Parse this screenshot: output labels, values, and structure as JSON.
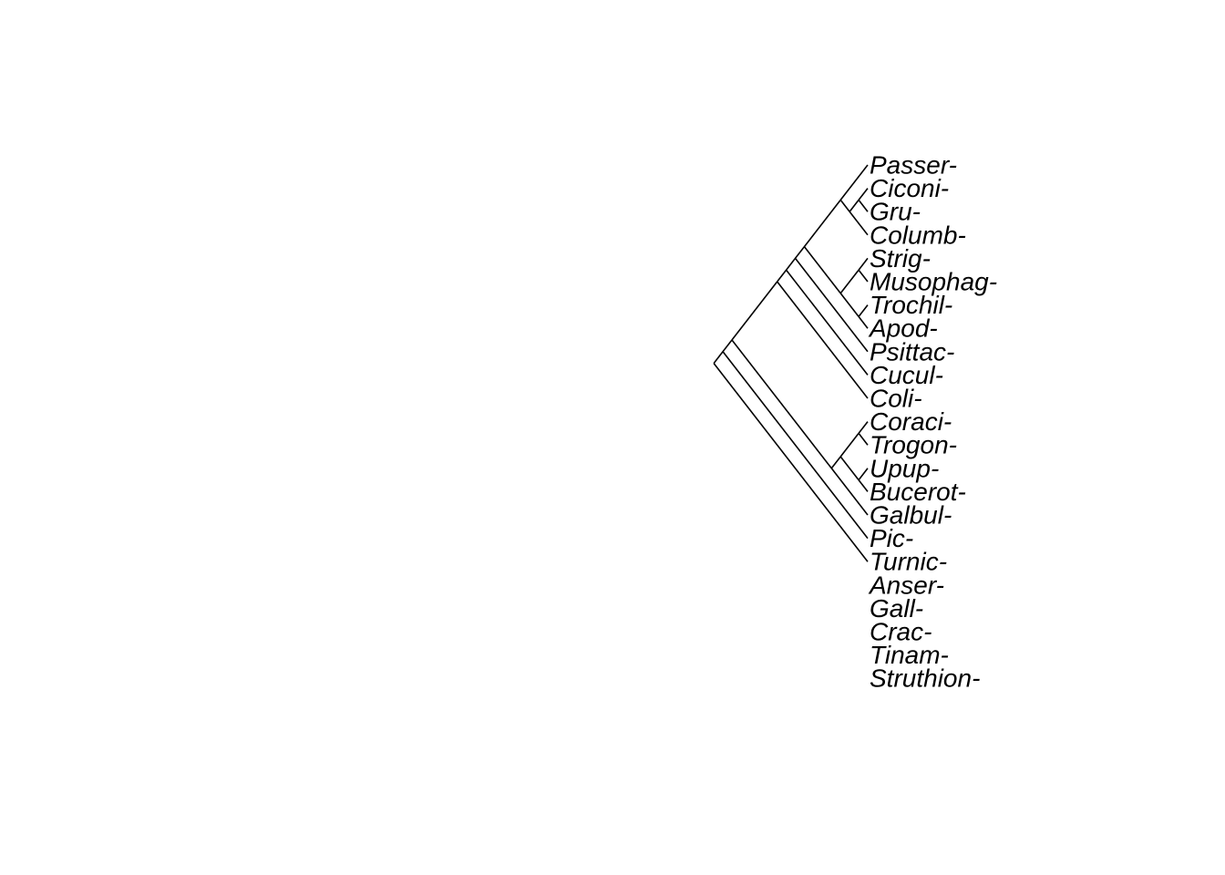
{
  "tree": {
    "type": "cladogram",
    "line_color": "#000000",
    "background": "#ffffff",
    "tips": [
      "Passer-",
      "Ciconi-",
      "Gru-",
      "Columb-",
      "Strig-",
      "Musophag-",
      "Trochil-",
      "Apod-",
      "Psittac-",
      "Cucul-",
      "Coli-",
      "Coraci-",
      "Trogon-",
      "Upup-",
      "Bucerot-",
      "Galbul-",
      "Pic-",
      "Turnic-",
      "Anser-",
      "Gall-",
      "Crac-",
      "Tinam-",
      "Struthion-"
    ],
    "newick": "((((((((Passer,((Ciconi,Gru),Columb)),((Strig,Musophag),(Trochil,Apod))),Psittac),Cucul),Coli),(((Coraci,Trogon),(Upup,Bucerot)),Galbul)),Pic),Turnic),(((Anser,(Gall,Crac)),(Tinam,Struthion))));"
  }
}
